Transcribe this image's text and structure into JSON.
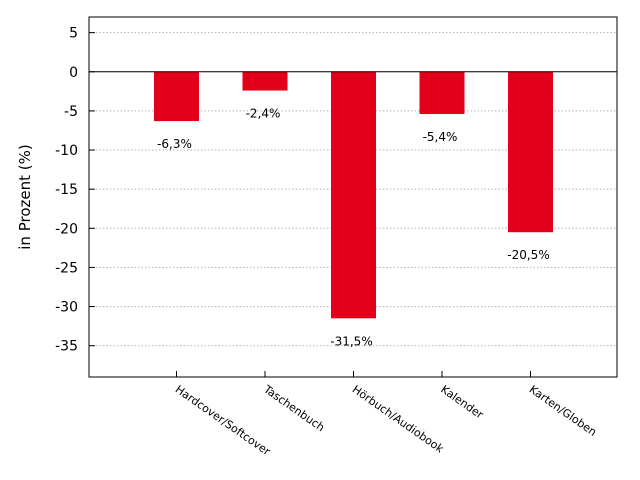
{
  "chart_data": {
    "type": "bar",
    "categories": [
      "Hardcover/Softcover",
      "Taschenbuch",
      "Hörbuch/Audiobook",
      "Kalender",
      "Karten/Globen"
    ],
    "values": [
      -6.3,
      -2.4,
      -31.5,
      -5.4,
      -20.5
    ],
    "data_labels": [
      "-6,3%",
      "-2,4%",
      "-31,5%",
      "-5,4%",
      "-20,5%"
    ],
    "ylabel": "in Prozent (%)",
    "ylim": [
      -39,
      7
    ],
    "yticks": [
      5,
      0,
      -5,
      -10,
      -15,
      -20,
      -25,
      -30,
      -35
    ],
    "ytick_labels": [
      "5",
      "0",
      "-5",
      "-10",
      "-15",
      "-20",
      "-25",
      "-30",
      "-35"
    ],
    "bar_color": "#e2001a",
    "grid": true,
    "grid_style": "dotted"
  }
}
